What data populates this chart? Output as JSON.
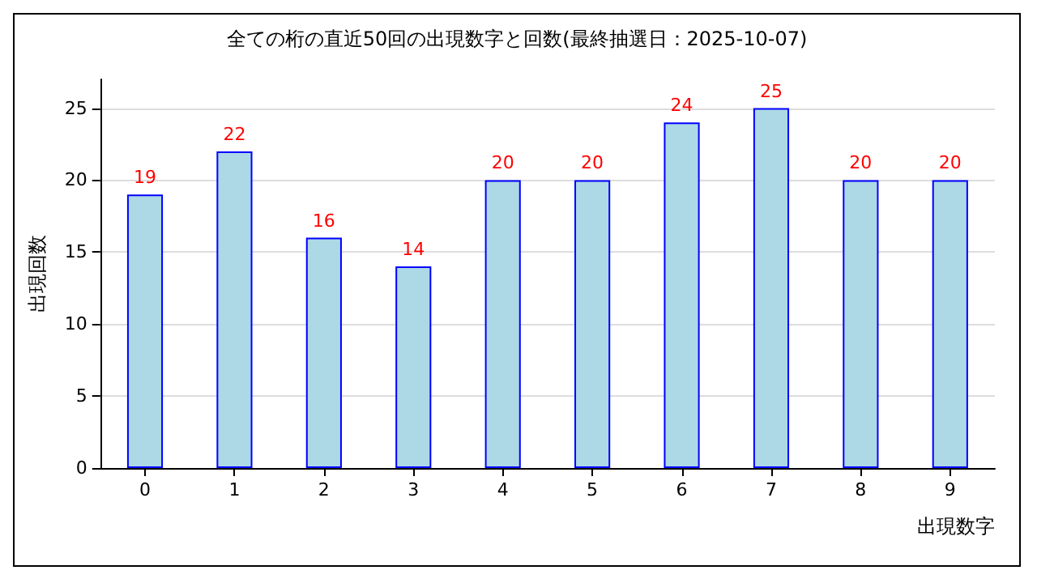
{
  "chart_data": {
    "type": "bar",
    "title": "全ての桁の直近50回の出現数字と回数(最終抽選日：2025-10-07)",
    "xlabel": "出現数字",
    "ylabel": "出現回数",
    "categories": [
      "0",
      "1",
      "2",
      "3",
      "4",
      "5",
      "6",
      "7",
      "8",
      "9"
    ],
    "values": [
      19,
      22,
      16,
      14,
      20,
      20,
      24,
      25,
      20,
      20
    ],
    "color": "#add8e6",
    "data_labels": true,
    "ylim": [
      0,
      27
    ],
    "yticks": [
      0,
      5,
      10,
      15,
      20,
      25
    ],
    "grid": "y"
  }
}
